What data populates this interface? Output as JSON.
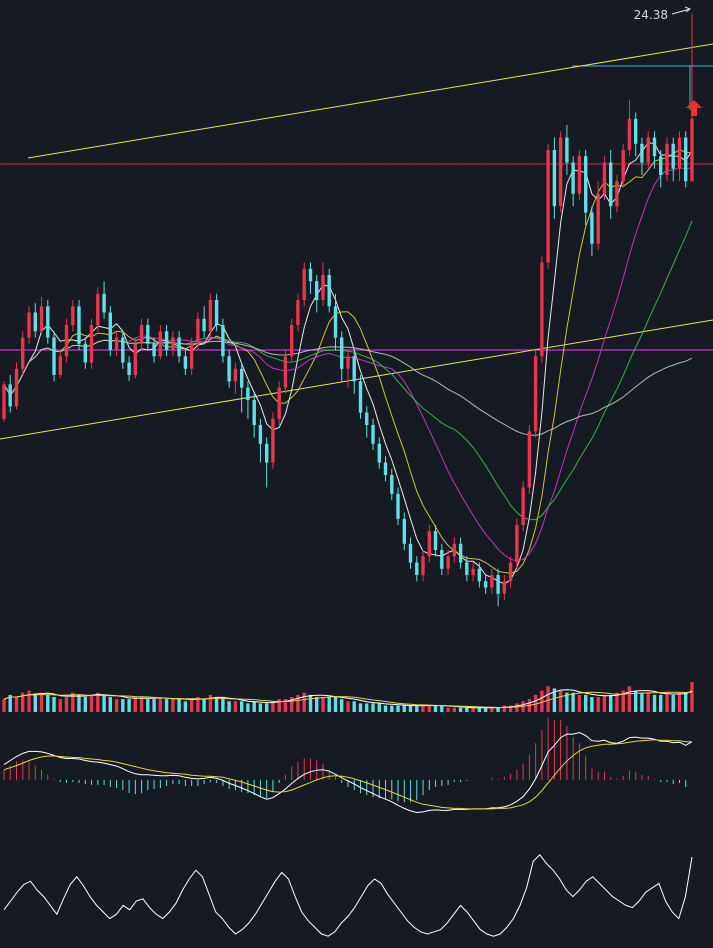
{
  "colors": {
    "background": "#161a22",
    "grid": "#2a2f3a",
    "up": "#e8364a",
    "down": "#5fe0e8",
    "ma5": "#ffffff",
    "ma10": "#e8d24a",
    "ma20": "#d23ad8",
    "ma30": "#3fbf4a",
    "ma60": "#c8c8c8",
    "trendline": "#e8e05a",
    "hline_red": "#d02a3a",
    "hline_magenta": "#c03ad0",
    "hline_cyan": "#39b8e0"
  },
  "chart_data": [
    {
      "type": "candlestick",
      "panel": "price",
      "ylim": [
        14.2,
        24.6
      ],
      "candles": [
        [
          17.9,
          18.45,
          18.5,
          17.85
        ],
        [
          18.45,
          18.1,
          18.6,
          18.0
        ],
        [
          18.1,
          18.7,
          18.8,
          18.05
        ],
        [
          18.7,
          19.2,
          19.3,
          18.6
        ],
        [
          19.2,
          19.6,
          19.7,
          19.1
        ],
        [
          19.6,
          19.3,
          19.75,
          19.2
        ],
        [
          19.3,
          19.7,
          19.85,
          19.25
        ],
        [
          19.7,
          19.2,
          19.8,
          19.1
        ],
        [
          19.2,
          18.6,
          19.3,
          18.5
        ],
        [
          18.6,
          18.9,
          19.0,
          18.55
        ],
        [
          18.9,
          19.4,
          19.5,
          18.8
        ],
        [
          19.4,
          19.7,
          19.8,
          19.3
        ],
        [
          19.7,
          19.1,
          19.8,
          19.0
        ],
        [
          19.1,
          18.8,
          19.2,
          18.7
        ],
        [
          18.8,
          19.4,
          19.5,
          18.7
        ],
        [
          19.4,
          19.9,
          20.0,
          19.3
        ],
        [
          19.9,
          19.6,
          20.1,
          19.5
        ],
        [
          19.6,
          19.0,
          19.7,
          18.9
        ],
        [
          19.0,
          19.2,
          19.3,
          18.9
        ],
        [
          19.2,
          18.8,
          19.3,
          18.7
        ],
        [
          18.8,
          18.6,
          18.9,
          18.5
        ],
        [
          18.6,
          19.1,
          19.2,
          18.55
        ],
        [
          19.1,
          19.4,
          19.5,
          19.0
        ],
        [
          19.4,
          19.1,
          19.5,
          19.0
        ],
        [
          19.1,
          18.9,
          19.2,
          18.8
        ],
        [
          18.9,
          19.3,
          19.4,
          18.85
        ],
        [
          19.3,
          19.0,
          19.4,
          18.9
        ],
        [
          19.0,
          19.2,
          19.3,
          18.9
        ],
        [
          19.2,
          18.9,
          19.3,
          18.8
        ],
        [
          18.9,
          18.7,
          19.0,
          18.6
        ],
        [
          18.7,
          19.1,
          19.2,
          18.6
        ],
        [
          19.1,
          19.5,
          19.6,
          19.0
        ],
        [
          19.5,
          19.3,
          19.7,
          19.2
        ],
        [
          19.3,
          19.8,
          19.9,
          19.2
        ],
        [
          19.8,
          19.4,
          19.9,
          19.3
        ],
        [
          19.4,
          18.9,
          19.5,
          18.8
        ],
        [
          18.9,
          18.5,
          19.0,
          18.4
        ],
        [
          18.5,
          18.7,
          18.8,
          18.3
        ],
        [
          18.7,
          18.4,
          18.8,
          18.0
        ],
        [
          18.4,
          18.2,
          18.5,
          17.9
        ],
        [
          18.2,
          17.8,
          18.3,
          17.6
        ],
        [
          17.8,
          17.5,
          17.9,
          17.2
        ],
        [
          17.5,
          17.2,
          17.6,
          16.8
        ],
        [
          17.2,
          17.9,
          18.0,
          17.1
        ],
        [
          17.9,
          18.4,
          18.5,
          17.8
        ],
        [
          18.4,
          18.9,
          19.0,
          18.3
        ],
        [
          18.9,
          19.4,
          19.5,
          18.8
        ],
        [
          19.4,
          19.8,
          19.9,
          19.3
        ],
        [
          19.8,
          20.3,
          20.4,
          19.7
        ],
        [
          20.3,
          20.1,
          20.4,
          19.9
        ],
        [
          20.1,
          19.8,
          20.2,
          19.6
        ],
        [
          19.8,
          20.2,
          20.4,
          19.7
        ],
        [
          20.2,
          19.7,
          20.3,
          19.6
        ],
        [
          19.7,
          19.2,
          19.9,
          19.0
        ],
        [
          19.2,
          18.7,
          19.3,
          18.5
        ],
        [
          18.7,
          18.9,
          19.0,
          18.4
        ],
        [
          18.9,
          18.5,
          19.0,
          18.3
        ],
        [
          18.5,
          18.0,
          18.6,
          17.9
        ],
        [
          18.0,
          17.8,
          18.1,
          17.6
        ],
        [
          17.8,
          17.5,
          17.9,
          17.4
        ],
        [
          17.5,
          17.2,
          17.6,
          17.1
        ],
        [
          17.2,
          17.0,
          17.3,
          16.9
        ],
        [
          17.0,
          16.7,
          17.1,
          16.6
        ],
        [
          16.7,
          16.3,
          16.8,
          16.2
        ],
        [
          16.3,
          15.9,
          16.4,
          15.8
        ],
        [
          15.9,
          15.6,
          16.0,
          15.5
        ],
        [
          15.6,
          15.4,
          15.7,
          15.3
        ],
        [
          15.4,
          15.7,
          15.8,
          15.3
        ],
        [
          15.7,
          16.1,
          16.2,
          15.6
        ],
        [
          16.1,
          15.8,
          16.2,
          15.7
        ],
        [
          15.8,
          15.5,
          15.9,
          15.4
        ],
        [
          15.5,
          15.7,
          15.8,
          15.4
        ],
        [
          15.7,
          15.9,
          16.0,
          15.6
        ],
        [
          15.9,
          15.6,
          16.0,
          15.5
        ],
        [
          15.6,
          15.4,
          15.7,
          15.3
        ],
        [
          15.4,
          15.5,
          15.6,
          15.3
        ],
        [
          15.5,
          15.3,
          15.6,
          15.2
        ],
        [
          15.3,
          15.2,
          15.4,
          15.1
        ],
        [
          15.2,
          15.4,
          15.5,
          15.1
        ],
        [
          15.4,
          15.1,
          15.5,
          14.9
        ],
        [
          15.1,
          15.3,
          15.4,
          15.0
        ],
        [
          15.3,
          15.6,
          15.7,
          15.2
        ],
        [
          15.6,
          16.2,
          16.3,
          15.5
        ],
        [
          16.2,
          16.8,
          16.9,
          16.1
        ],
        [
          16.8,
          17.7,
          17.8,
          16.7
        ],
        [
          17.7,
          18.9,
          19.0,
          17.6
        ],
        [
          18.9,
          20.4,
          20.5,
          18.8
        ],
        [
          20.4,
          22.2,
          22.3,
          20.3
        ],
        [
          22.2,
          21.3,
          22.4,
          21.1
        ],
        [
          21.3,
          22.4,
          22.5,
          21.2
        ],
        [
          22.4,
          22.0,
          22.6,
          21.8
        ],
        [
          22.0,
          21.5,
          22.1,
          21.3
        ],
        [
          21.5,
          22.1,
          22.2,
          21.4
        ],
        [
          22.1,
          21.2,
          22.2,
          21.0
        ],
        [
          21.2,
          20.7,
          21.3,
          20.5
        ],
        [
          20.7,
          21.5,
          21.7,
          20.6
        ],
        [
          21.5,
          22.0,
          22.1,
          21.4
        ],
        [
          22.0,
          21.3,
          22.2,
          21.1
        ],
        [
          21.3,
          21.7,
          21.8,
          21.2
        ],
        [
          21.7,
          22.2,
          22.3,
          21.6
        ],
        [
          22.2,
          22.7,
          23.0,
          22.1
        ],
        [
          22.7,
          22.3,
          22.8,
          22.1
        ],
        [
          22.3,
          22.0,
          22.4,
          21.8
        ],
        [
          22.0,
          22.4,
          22.5,
          21.9
        ],
        [
          22.4,
          22.1,
          22.5,
          21.9
        ],
        [
          22.1,
          21.8,
          22.2,
          21.6
        ],
        [
          21.8,
          22.3,
          22.4,
          21.7
        ],
        [
          22.3,
          21.9,
          22.4,
          21.7
        ],
        [
          21.9,
          22.4,
          22.5,
          21.7
        ],
        [
          22.4,
          21.7,
          22.5,
          21.6
        ],
        [
          21.7,
          22.7,
          24.38,
          21.7
        ]
      ],
      "high_label": "24.38",
      "ma_periods": [
        5,
        10,
        20,
        30,
        60
      ]
    },
    {
      "type": "bar",
      "panel": "volume",
      "values": [
        6,
        8,
        7,
        9,
        10,
        8,
        9,
        8,
        7,
        6,
        7,
        9,
        8,
        7,
        8,
        9,
        8,
        7,
        6,
        6,
        6,
        7,
        7,
        6,
        6,
        7,
        6,
        6,
        6,
        5,
        6,
        7,
        6,
        8,
        7,
        6,
        5,
        5,
        5,
        4,
        5,
        4,
        4,
        5,
        6,
        6,
        7,
        8,
        9,
        8,
        7,
        7,
        7,
        7,
        6,
        5,
        5,
        4,
        4,
        4,
        4,
        3,
        3,
        3,
        3,
        3,
        3,
        3,
        3,
        3,
        3,
        2,
        2,
        2,
        2,
        2,
        2,
        2,
        2,
        2,
        3,
        3,
        4,
        5,
        6,
        8,
        10,
        12,
        11,
        10,
        9,
        9,
        8,
        8,
        7,
        7,
        8,
        8,
        9,
        10,
        12,
        10,
        9,
        9,
        8,
        8,
        9,
        8,
        9,
        9,
        14
      ]
    },
    {
      "type": "line",
      "panel": "macd",
      "series": [
        {
          "values": [
            0.3,
            0.38,
            0.46,
            0.52,
            0.56,
            0.56,
            0.55,
            0.52,
            0.48,
            0.44,
            0.42,
            0.42,
            0.41,
            0.38,
            0.36,
            0.35,
            0.33,
            0.3,
            0.27,
            0.22,
            0.16,
            0.12,
            0.1,
            0.1,
            0.09,
            0.08,
            0.08,
            0.09,
            0.08,
            0.05,
            0.03,
            0.02,
            0.03,
            0.05,
            0.03,
            -0.01,
            -0.07,
            -0.11,
            -0.16,
            -0.21,
            -0.27,
            -0.33,
            -0.38,
            -0.35,
            -0.27,
            -0.18,
            -0.07,
            0.03,
            0.11,
            0.16,
            0.19,
            0.2,
            0.17,
            0.11,
            0.04,
            -0.02,
            -0.08,
            -0.15,
            -0.21,
            -0.27,
            -0.33,
            -0.38,
            -0.43,
            -0.5,
            -0.56,
            -0.61,
            -0.64,
            -0.63,
            -0.6,
            -0.59,
            -0.6,
            -0.6,
            -0.58,
            -0.58,
            -0.58,
            -0.57,
            -0.57,
            -0.57,
            -0.55,
            -0.55,
            -0.53,
            -0.49,
            -0.42,
            -0.33,
            -0.18,
            0.02,
            0.28,
            0.55,
            0.68,
            0.83,
            0.9,
            0.9,
            0.93,
            0.87,
            0.77,
            0.76,
            0.78,
            0.73,
            0.72,
            0.76,
            0.83,
            0.84,
            0.82,
            0.82,
            0.8,
            0.76,
            0.76,
            0.73,
            0.74,
            0.68,
            0.75
          ]
        },
        {
          "values": [
            0.2,
            0.24,
            0.28,
            0.33,
            0.38,
            0.42,
            0.45,
            0.47,
            0.47,
            0.46,
            0.45,
            0.44,
            0.44,
            0.42,
            0.41,
            0.4,
            0.38,
            0.37,
            0.35,
            0.32,
            0.29,
            0.26,
            0.23,
            0.2,
            0.18,
            0.16,
            0.14,
            0.13,
            0.12,
            0.11,
            0.09,
            0.08,
            0.07,
            0.07,
            0.06,
            0.05,
            0.02,
            -0.01,
            -0.04,
            -0.08,
            -0.12,
            -0.16,
            -0.2,
            -0.23,
            -0.24,
            -0.23,
            -0.2,
            -0.15,
            -0.1,
            -0.05,
            0.0,
            0.04,
            0.07,
            0.08,
            0.07,
            0.05,
            0.02,
            -0.02,
            -0.06,
            -0.1,
            -0.15,
            -0.19,
            -0.24,
            -0.29,
            -0.34,
            -0.39,
            -0.44,
            -0.48,
            -0.5,
            -0.52,
            -0.54,
            -0.55,
            -0.56,
            -0.56,
            -0.57,
            -0.57,
            -0.57,
            -0.57,
            -0.57,
            -0.56,
            -0.56,
            -0.55,
            -0.52,
            -0.49,
            -0.43,
            -0.34,
            -0.21,
            -0.06,
            0.09,
            0.24,
            0.37,
            0.48,
            0.57,
            0.63,
            0.66,
            0.68,
            0.7,
            0.7,
            0.71,
            0.72,
            0.74,
            0.76,
            0.77,
            0.78,
            0.79,
            0.78,
            0.78,
            0.77,
            0.77,
            0.75,
            0.75
          ]
        }
      ]
    },
    {
      "type": "line",
      "panel": "oscillator",
      "series": [
        {
          "values": [
            32,
            40,
            48,
            55,
            58,
            50,
            44,
            36,
            28,
            42,
            55,
            62,
            54,
            44,
            36,
            30,
            24,
            28,
            36,
            32,
            40,
            42,
            34,
            28,
            24,
            30,
            38,
            50,
            60,
            68,
            62,
            46,
            30,
            24,
            16,
            10,
            14,
            20,
            28,
            38,
            48,
            58,
            66,
            60,
            44,
            30,
            22,
            16,
            10,
            8,
            12,
            20,
            26,
            34,
            44,
            54,
            60,
            56,
            46,
            38,
            30,
            22,
            16,
            12,
            10,
            12,
            14,
            20,
            28,
            36,
            30,
            22,
            14,
            10,
            8,
            10,
            16,
            24,
            36,
            52,
            76,
            82,
            74,
            68,
            60,
            50,
            44,
            50,
            58,
            62,
            56,
            50,
            44,
            40,
            36,
            34,
            40,
            48,
            52,
            56,
            40,
            30,
            24,
            44,
            80
          ]
        }
      ]
    }
  ]
}
